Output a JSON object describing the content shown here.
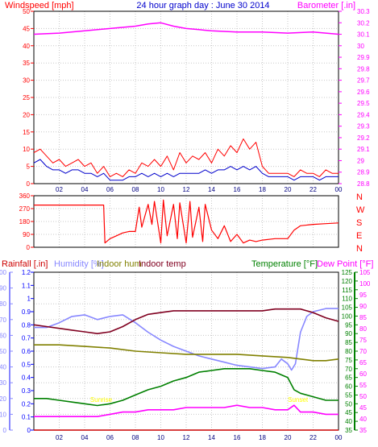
{
  "title": "24 hour graph day : June 30 2014",
  "colors": {
    "wind": "#ff0000",
    "wind_avg": "#0000cc",
    "barometer": "#ff00ff",
    "direction": "#ff0000",
    "rainfall": "#cc0000",
    "humidity": "#8888ff",
    "indoor_hum": "#808000",
    "indoor_temp": "#800020",
    "temperature": "#008000",
    "dewpoint": "#ff00ff",
    "rain_axis": "#0000ff",
    "temp_axis": "#008000",
    "dew_axis": "#ff00ff",
    "hum_axis": "#8888ff",
    "annotation": "#ffff00",
    "grid": "#c8c8c8",
    "tick_text": "#000080"
  },
  "chart_data": [
    {
      "id": "wind_baro",
      "type": "line",
      "ylabel_left": "Windspeed [mph]",
      "ylabel_right": "Barometer [.in]",
      "x_ticks": [
        "02",
        "04",
        "06",
        "08",
        "10",
        "12",
        "14",
        "16",
        "18",
        "20",
        "22",
        "00"
      ],
      "y_left_ticks": [
        "0",
        "5",
        "10",
        "15",
        "20",
        "25",
        "30",
        "35",
        "40",
        "45",
        "50"
      ],
      "y_left_range": [
        0,
        50
      ],
      "y_right_ticks": [
        "28.8",
        "28.9",
        "29",
        "29.1",
        "29.2",
        "29.3",
        "29.4",
        "29.5",
        "29.6",
        "29.7",
        "29.8",
        "29.9",
        "30",
        "30.1",
        "30.2",
        "30.3"
      ],
      "y_right_range": [
        28.8,
        30.3
      ],
      "grid": true,
      "series": [
        {
          "key": "barometer",
          "axis": "right",
          "x": [
            0,
            2,
            4,
            6,
            8,
            9,
            10,
            11,
            12,
            13,
            14,
            16,
            18,
            20,
            22,
            24
          ],
          "y": [
            30.1,
            30.11,
            30.13,
            30.15,
            30.17,
            30.19,
            30.2,
            30.17,
            30.15,
            30.14,
            30.13,
            30.12,
            30.12,
            30.11,
            30.12,
            30.1
          ]
        },
        {
          "key": "wind_gust",
          "axis": "left",
          "x": [
            0,
            0.5,
            1,
            1.5,
            2,
            2.5,
            3,
            3.5,
            4,
            4.5,
            5,
            5.5,
            6,
            6.5,
            7,
            7.5,
            8,
            8.5,
            9,
            9.5,
            10,
            10.5,
            11,
            11.5,
            12,
            12.5,
            13,
            13.5,
            14,
            14.5,
            15,
            15.5,
            16,
            16.5,
            17,
            17.5,
            18,
            18.5,
            19,
            19.5,
            20,
            20.5,
            21,
            21.5,
            22,
            22.5,
            23,
            23.5,
            24
          ],
          "y": [
            9,
            10,
            8,
            6,
            7,
            5,
            6,
            7,
            5,
            6,
            3,
            5,
            2,
            3,
            2,
            4,
            3,
            6,
            5,
            7,
            5,
            8,
            4,
            9,
            6,
            8,
            7,
            9,
            6,
            10,
            8,
            11,
            9,
            13,
            10,
            12,
            5,
            3,
            3,
            3,
            3,
            2,
            4,
            3,
            3,
            2,
            4,
            3,
            3
          ]
        },
        {
          "key": "wind_avg",
          "axis": "left",
          "x": [
            0,
            0.5,
            1,
            1.5,
            2,
            2.5,
            3,
            3.5,
            4,
            4.5,
            5,
            5.5,
            6,
            6.5,
            7,
            7.5,
            8,
            8.5,
            9,
            9.5,
            10,
            10.5,
            11,
            11.5,
            12,
            12.5,
            13,
            13.5,
            14,
            14.5,
            15,
            15.5,
            16,
            16.5,
            17,
            17.5,
            18,
            18.5,
            19,
            19.5,
            20,
            20.5,
            21,
            21.5,
            22,
            22.5,
            23,
            23.5,
            24
          ],
          "y": [
            6,
            7,
            5,
            4,
            4,
            3,
            4,
            4,
            3,
            3,
            2,
            3,
            1,
            1,
            1,
            2,
            2,
            3,
            2,
            3,
            2,
            3,
            2,
            3,
            3,
            3,
            3,
            4,
            3,
            4,
            4,
            5,
            4,
            5,
            4,
            5,
            3,
            2,
            2,
            2,
            2,
            1,
            2,
            2,
            2,
            1,
            2,
            2,
            2
          ]
        }
      ]
    },
    {
      "id": "direction",
      "type": "line",
      "y_left_ticks": [
        "0",
        "90",
        "180",
        "270",
        "360"
      ],
      "y_left_range": [
        0,
        360
      ],
      "compass": [
        "N",
        "W",
        "S",
        "E",
        "N"
      ],
      "grid": true,
      "series": [
        {
          "key": "direction",
          "axis": "left",
          "x": [
            0,
            2,
            4,
            5,
            5.5,
            5.6,
            6,
            6.5,
            7,
            7.5,
            8,
            8.3,
            8.5,
            9,
            9.3,
            9.5,
            10,
            10.2,
            10.5,
            11,
            11.3,
            11.5,
            12,
            12.3,
            12.5,
            13,
            13.3,
            13.5,
            14,
            14.5,
            15,
            15.5,
            16,
            16.5,
            17,
            17.5,
            18,
            19,
            20,
            20.5,
            21,
            22,
            23,
            24
          ],
          "y": [
            295,
            295,
            295,
            295,
            295,
            30,
            60,
            80,
            100,
            110,
            110,
            280,
            140,
            300,
            160,
            320,
            30,
            330,
            80,
            300,
            60,
            310,
            30,
            320,
            70,
            280,
            40,
            300,
            120,
            60,
            150,
            40,
            90,
            30,
            50,
            40,
            50,
            60,
            60,
            120,
            150,
            160,
            165,
            170
          ]
        }
      ]
    },
    {
      "id": "temp_hum_rain",
      "type": "line",
      "legend": [
        "Rainfall [.in]",
        "Humidity [%]",
        "Indoor hum",
        "Indoor temp",
        "Temperature [°F]",
        "Dew Point [°F]"
      ],
      "x_ticks": [
        "02",
        "04",
        "06",
        "08",
        "10",
        "12",
        "14",
        "16",
        "18",
        "20",
        "22",
        "00"
      ],
      "y_rain_ticks": [
        "0",
        "0.1",
        "0.2",
        "0.3",
        "0.4",
        "0.5",
        "0.6",
        "0.7",
        "0.8",
        "0.9",
        "1",
        "1.1",
        "1.2"
      ],
      "y_rain_range": [
        0,
        1.2
      ],
      "y_hum_ticks": [
        "0",
        "10",
        "20",
        "30",
        "40",
        "50",
        "60",
        "70",
        "80",
        "90",
        "100"
      ],
      "y_hum_range": [
        0,
        100
      ],
      "y_temp_ticks": [
        "35",
        "40",
        "45",
        "50",
        "55",
        "60",
        "65",
        "70",
        "75",
        "80",
        "85",
        "90",
        "95",
        "100",
        "105",
        "110",
        "115",
        "120",
        "125"
      ],
      "y_temp_range": [
        35,
        125
      ],
      "y_dew_ticks": [
        "35",
        "40",
        "45",
        "50",
        "55",
        "60",
        "65",
        "70",
        "75",
        "80",
        "85",
        "90",
        "95",
        "100",
        "105"
      ],
      "y_dew_range": [
        35,
        105
      ],
      "annotations": [
        "Sunrise",
        "Sunset"
      ],
      "annotation_x": [
        5.3,
        20.8
      ],
      "grid": true,
      "series": [
        {
          "key": "humidity",
          "axis": "hum",
          "x": [
            0,
            1,
            2,
            3,
            4,
            5,
            6,
            7,
            8,
            9,
            10,
            11,
            12,
            13,
            14,
            15,
            16,
            17,
            18,
            19,
            19.5,
            20,
            20.3,
            20.6,
            21,
            21.5,
            22,
            23,
            24
          ],
          "y": [
            65,
            65,
            68,
            72,
            73,
            70,
            72,
            73,
            68,
            62,
            57,
            53,
            50,
            47,
            45,
            43,
            41,
            40,
            39,
            40,
            45,
            42,
            38,
            42,
            62,
            72,
            75,
            77,
            77
          ]
        },
        {
          "key": "indoor_temp",
          "axis": "temp",
          "x": [
            0,
            1,
            2,
            3,
            4,
            5,
            6,
            7,
            8,
            9,
            10,
            11,
            12,
            13,
            14,
            15,
            16,
            17,
            18,
            19,
            20,
            21,
            22,
            23,
            24
          ],
          "y": [
            95,
            94,
            93,
            92,
            91,
            90,
            91,
            94,
            98,
            101,
            102,
            103,
            103,
            103,
            103,
            103,
            103,
            103,
            103,
            104,
            104,
            104,
            102,
            99,
            97
          ]
        },
        {
          "key": "indoor_hum",
          "axis": "hum",
          "x": [
            0,
            2,
            4,
            6,
            8,
            10,
            12,
            14,
            16,
            18,
            20,
            21,
            22,
            23,
            24
          ],
          "y": [
            54,
            54,
            53,
            52,
            50,
            49,
            48,
            48,
            48,
            47,
            46,
            45,
            44,
            44,
            45
          ]
        },
        {
          "key": "temperature",
          "axis": "temp",
          "x": [
            0,
            1,
            2,
            3,
            4,
            5,
            6,
            7,
            8,
            9,
            10,
            11,
            12,
            13,
            14,
            15,
            16,
            17,
            18,
            19,
            20,
            20.5,
            21,
            22,
            23,
            24
          ],
          "y": [
            53,
            53,
            52,
            51,
            50,
            49,
            50,
            52,
            55,
            58,
            60,
            63,
            65,
            68,
            69,
            70,
            70,
            70,
            69,
            68,
            65,
            58,
            56,
            54,
            52,
            52
          ]
        },
        {
          "key": "dewpoint",
          "axis": "dew",
          "x": [
            0,
            1,
            2,
            3,
            4,
            5,
            6,
            7,
            8,
            9,
            10,
            11,
            12,
            13,
            14,
            15,
            16,
            17,
            18,
            19,
            20,
            20.5,
            21,
            22,
            23,
            24
          ],
          "y": [
            41,
            41,
            41,
            41,
            41,
            41,
            42,
            43,
            43,
            44,
            44,
            44,
            45,
            45,
            45,
            45,
            46,
            45,
            45,
            44,
            44,
            46,
            43,
            43,
            42,
            42
          ]
        },
        {
          "key": "rainfall",
          "axis": "rain",
          "x": [
            0,
            24
          ],
          "y": [
            0,
            0
          ]
        }
      ]
    }
  ]
}
